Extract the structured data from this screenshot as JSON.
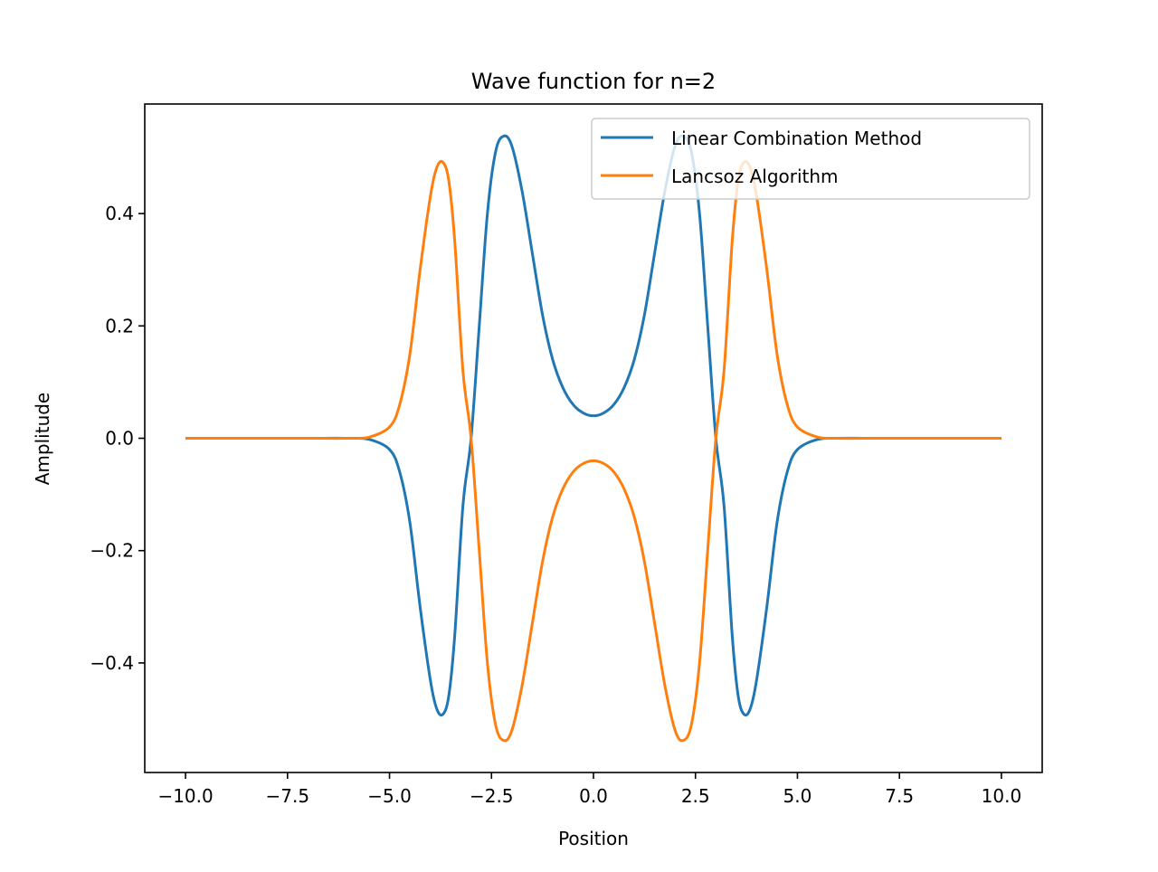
{
  "chart_data": {
    "type": "line",
    "title": "Wave function for n=2",
    "xlabel": "Position",
    "ylabel": "Amplitude",
    "xlim": [
      -11.0,
      11.0
    ],
    "ylim": [
      -0.595,
      0.595
    ],
    "xticks": [
      -10.0,
      -7.5,
      -5.0,
      -2.5,
      0.0,
      2.5,
      5.0,
      7.5,
      10.0
    ],
    "xtick_labels": [
      "−10.0",
      "−7.5",
      "−5.0",
      "−2.5",
      "0.0",
      "2.5",
      "5.0",
      "7.5",
      "10.0"
    ],
    "yticks": [
      -0.4,
      -0.2,
      0.0,
      0.2,
      0.4
    ],
    "ytick_labels": [
      "−0.4",
      "−0.2",
      "0.0",
      "0.2",
      "0.4"
    ],
    "grid": false,
    "legend_position": "top-right",
    "x": [
      -10,
      -9,
      -8,
      -7,
      -6,
      -5.5,
      -5,
      -4.75,
      -4.5,
      -4.25,
      -4,
      -3.85,
      -3.7,
      -3.55,
      -3.4,
      -3.2,
      -3,
      -2.8,
      -2.6,
      -2.4,
      -2.2,
      -2.0,
      -1.75,
      -1.5,
      -1.25,
      -1,
      -0.75,
      -0.5,
      -0.25,
      0,
      0.25,
      0.5,
      0.75,
      1,
      1.25,
      1.5,
      1.75,
      2.0,
      2.2,
      2.4,
      2.6,
      2.8,
      3,
      3.2,
      3.4,
      3.55,
      3.7,
      3.85,
      4,
      4.25,
      4.5,
      4.75,
      5,
      5.5,
      6,
      7,
      8,
      9,
      10
    ],
    "series": [
      {
        "name": "Linear Combination Method",
        "color": "#1f77b4",
        "values": [
          0,
          0,
          0,
          0,
          0,
          -0.002,
          -0.02,
          -0.06,
          -0.15,
          -0.3,
          -0.43,
          -0.48,
          -0.492,
          -0.46,
          -0.35,
          -0.12,
          0.0,
          0.2,
          0.4,
          0.51,
          0.538,
          0.52,
          0.44,
          0.33,
          0.22,
          0.14,
          0.09,
          0.06,
          0.045,
          0.04,
          0.045,
          0.06,
          0.09,
          0.14,
          0.22,
          0.33,
          0.44,
          0.52,
          0.538,
          0.51,
          0.4,
          0.2,
          0.0,
          -0.12,
          -0.35,
          -0.46,
          -0.492,
          -0.48,
          -0.43,
          -0.3,
          -0.15,
          -0.06,
          -0.02,
          -0.002,
          0,
          0,
          0,
          0,
          0
        ]
      },
      {
        "name": "Lancsoz Algorithm",
        "color": "#ff7f0e",
        "values": [
          0,
          0,
          0,
          0,
          0,
          0.002,
          0.02,
          0.06,
          0.15,
          0.3,
          0.43,
          0.48,
          0.492,
          0.46,
          0.35,
          0.12,
          0.0,
          -0.2,
          -0.4,
          -0.51,
          -0.538,
          -0.52,
          -0.44,
          -0.33,
          -0.22,
          -0.14,
          -0.09,
          -0.06,
          -0.045,
          -0.04,
          -0.045,
          -0.06,
          -0.09,
          -0.14,
          -0.22,
          -0.33,
          -0.44,
          -0.52,
          -0.538,
          -0.51,
          -0.4,
          -0.2,
          0.0,
          0.12,
          0.35,
          0.46,
          0.492,
          0.48,
          0.43,
          0.3,
          0.15,
          0.06,
          0.02,
          0.002,
          0,
          0,
          0,
          0,
          0
        ]
      }
    ]
  }
}
